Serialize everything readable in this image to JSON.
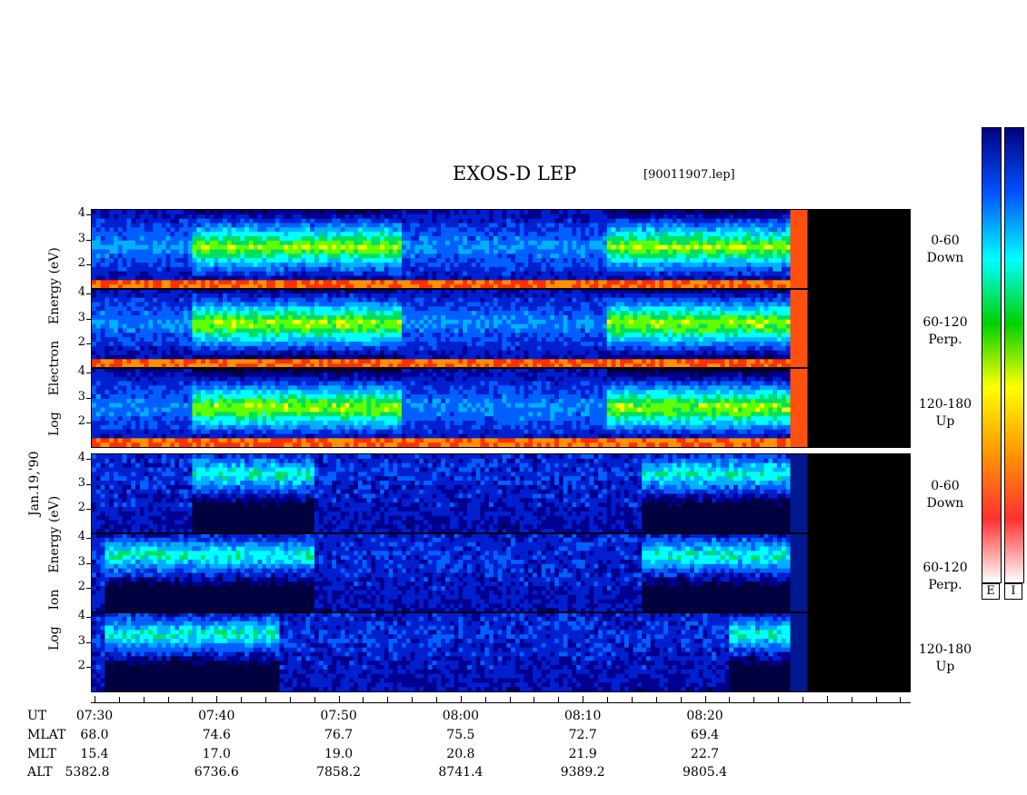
{
  "title": "EXOS-D LEP",
  "filename": "[90011907.lep]",
  "date_label": "Jan.19,'90",
  "electron_axis_words": [
    "Log",
    "Electron",
    "Energy (eV)"
  ],
  "ion_axis_words": [
    "Log",
    "Ion",
    "Energy (eV)"
  ],
  "colorbar_labels": [
    "E",
    "I"
  ],
  "info_rows": [
    {
      "name": "UT",
      "values": [
        "07:30",
        "07:40",
        "07:50",
        "08:00",
        "08:10",
        "08:20"
      ]
    },
    {
      "name": "MLAT",
      "values": [
        "68.0",
        "74.6",
        "76.7",
        "75.5",
        "72.7",
        "69.4"
      ]
    },
    {
      "name": "MLT",
      "values": [
        "15.4",
        "17.0",
        "19.0",
        "20.8",
        "21.9",
        "22.7"
      ]
    },
    {
      "name": "ALT",
      "values": [
        "5382.8",
        "6736.6",
        "7858.2",
        "8741.4",
        "9389.2",
        "9805.4"
      ]
    }
  ],
  "chart_data": {
    "type": "heatmap",
    "title": "EXOS-D LEP",
    "x_axis": {
      "quantity": "UT",
      "range": [
        "07:30",
        "08:29"
      ],
      "tick_labels": [
        "07:30",
        "07:40",
        "07:50",
        "08:00",
        "08:10",
        "08:20"
      ]
    },
    "y_tick_labels": [
      "2",
      "3",
      "4"
    ],
    "y_range_log_eV": [
      1,
      4.2
    ],
    "colormap": [
      "#ffffff",
      "#ff3030",
      "#ff9a00",
      "#ffff00",
      "#00d000",
      "#00ffff",
      "#0050ff",
      "#000080"
    ],
    "colormap_order": "top=high (dark blue) ... bottom=low (white), as printed bars",
    "panels": [
      {
        "species": "Electron",
        "pitch": "0-60",
        "direction": "Down",
        "features": {
          "low_band_red": true,
          "bright_intervals": [
            [
              "07:38",
              "07:55"
            ],
            [
              "08:12",
              "08:27"
            ]
          ],
          "peak_log_eV": 2.7
        }
      },
      {
        "species": "Electron",
        "pitch": "60-120",
        "direction": "Perp.",
        "features": {
          "low_band_red": true,
          "bright_intervals": [
            [
              "07:38",
              "07:55"
            ],
            [
              "08:12",
              "08:27"
            ]
          ],
          "peak_log_eV": 2.8
        }
      },
      {
        "species": "Electron",
        "pitch": "120-180",
        "direction": "Up",
        "features": {
          "low_band_red": true,
          "bright_intervals": [
            [
              "07:38",
              "07:55"
            ],
            [
              "08:12",
              "08:27"
            ]
          ],
          "peak_log_eV": 2.6
        }
      },
      {
        "species": "Ion",
        "pitch": "0-60",
        "direction": "Down",
        "features": {
          "bright_intervals": [
            [
              "07:38",
              "07:48"
            ],
            [
              "08:15",
              "08:27"
            ]
          ],
          "peak_log_eV": 3.4
        }
      },
      {
        "species": "Ion",
        "pitch": "60-120",
        "direction": "Perp.",
        "features": {
          "bright_intervals": [
            [
              "07:31",
              "07:48"
            ],
            [
              "08:15",
              "08:27"
            ]
          ],
          "peak_log_eV": 3.3
        }
      },
      {
        "species": "Ion",
        "pitch": "120-180",
        "direction": "Up",
        "features": {
          "bright_intervals": [
            [
              "07:31",
              "07:45"
            ],
            [
              "08:22",
              "08:27"
            ]
          ],
          "peak_log_eV": 3.3
        }
      }
    ]
  }
}
